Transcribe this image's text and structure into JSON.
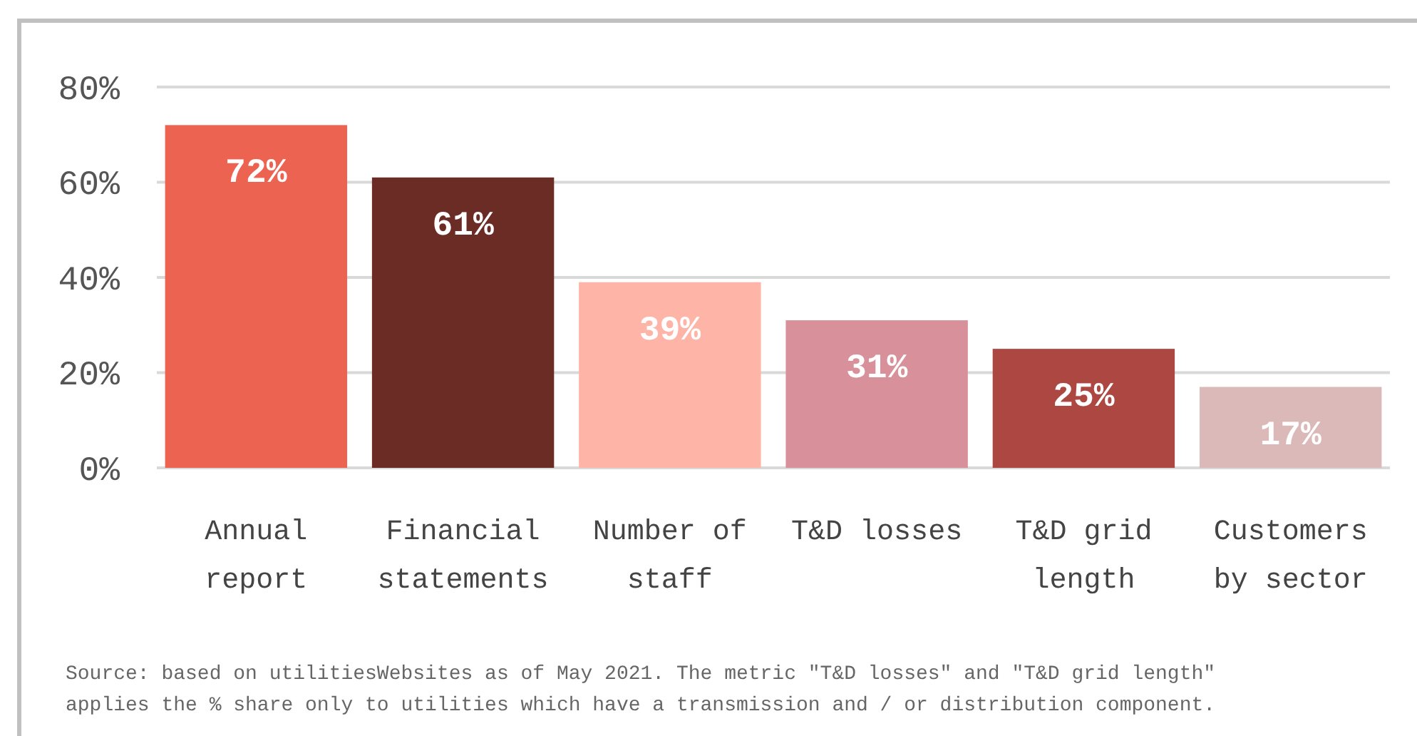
{
  "chart_data": {
    "type": "bar",
    "categories": [
      "Annual report",
      "Financial statements",
      "Number of staff",
      "T&D losses",
      "T&D grid length",
      "Customers by sector"
    ],
    "values": [
      72,
      61,
      39,
      31,
      25,
      17
    ],
    "colors": [
      "#ec6351",
      "#6b2c26",
      "#feb5a7",
      "#d8919a",
      "#ac4741",
      "#dbb9b8"
    ],
    "value_labels": [
      "72%",
      "61%",
      "39%",
      "31%",
      "25%",
      "17%"
    ],
    "ylim": [
      0,
      80
    ],
    "yticks": [
      {
        "value": 0,
        "label": "0%"
      },
      {
        "value": 20,
        "label": "20%"
      },
      {
        "value": 40,
        "label": "40%"
      },
      {
        "value": 60,
        "label": "60%"
      },
      {
        "value": 80,
        "label": "80%"
      }
    ],
    "grid": "y",
    "annotations": [
      "Source: based on utilitiesWebsites as of May 2021. The metric \"T&D losses\" and \"T&D grid length\"",
      "applies the % share only to utilities which have a transmission and / or distribution component."
    ]
  }
}
